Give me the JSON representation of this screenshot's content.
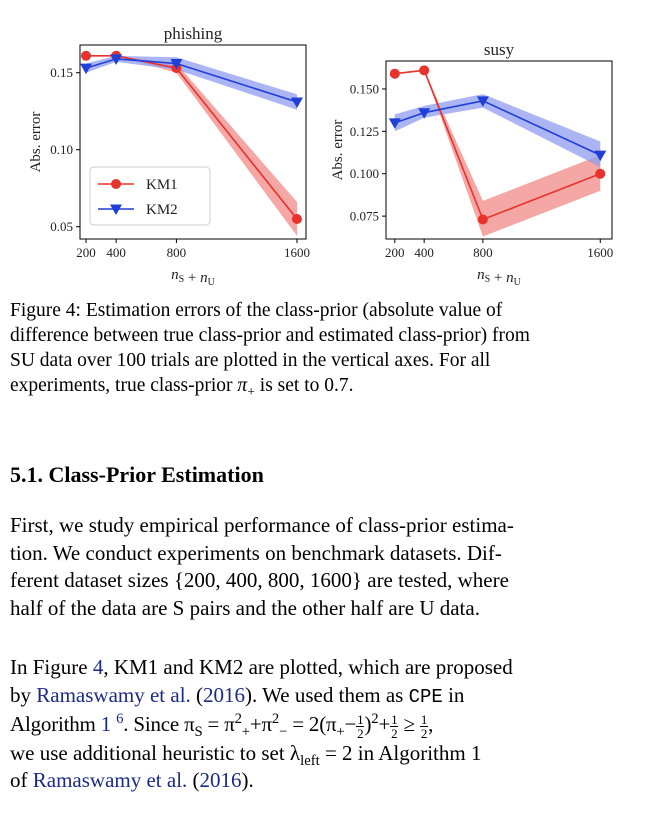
{
  "chart_data": [
    {
      "type": "line",
      "title": "phishing",
      "xlabel": "nS + nU",
      "ylabel": "Abs. error",
      "x": [
        200,
        400,
        800,
        1600
      ],
      "xticks": [
        "200",
        "400",
        "800",
        "1600"
      ],
      "xlim": [
        160,
        1660
      ],
      "ylim": [
        0.042,
        0.168
      ],
      "yticks": [
        "0.05",
        "0.10",
        "0.15"
      ],
      "ytick_values": [
        0.05,
        0.1,
        0.15
      ],
      "legend": "lower-left",
      "series": [
        {
          "name": "KM1",
          "color": "#e8322c",
          "fill": "#f08a86",
          "marker": "circle",
          "values": [
            0.161,
            0.161,
            0.153,
            0.055
          ],
          "lower": [
            0.161,
            0.161,
            0.15,
            0.044
          ],
          "upper": [
            0.161,
            0.161,
            0.156,
            0.066
          ]
        },
        {
          "name": "KM2",
          "color": "#1f3fd6",
          "fill": "#8f9cf0",
          "marker": "triangle-down",
          "values": [
            0.153,
            0.159,
            0.156,
            0.131
          ],
          "lower": [
            0.15,
            0.157,
            0.152,
            0.126
          ],
          "upper": [
            0.156,
            0.161,
            0.16,
            0.136
          ]
        }
      ]
    },
    {
      "type": "line",
      "title": "susy",
      "xlabel": "nS + nU",
      "ylabel": "Abs. error",
      "x": [
        200,
        400,
        800,
        1600
      ],
      "xticks": [
        "200",
        "400",
        "800",
        "1600"
      ],
      "xlim": [
        140,
        1680
      ],
      "ylim": [
        0.0615,
        0.1665
      ],
      "yticks": [
        "0.075",
        "0.100",
        "0.125",
        "0.150"
      ],
      "ytick_values": [
        0.075,
        0.1,
        0.125,
        0.15
      ],
      "legend": "none",
      "series": [
        {
          "name": "KM1",
          "color": "#e8322c",
          "fill": "#f08a86",
          "marker": "circle",
          "values": [
            0.159,
            0.161,
            0.073,
            0.1
          ],
          "lower": [
            0.159,
            0.161,
            0.063,
            0.09
          ],
          "upper": [
            0.159,
            0.161,
            0.084,
            0.111
          ]
        },
        {
          "name": "KM2",
          "color": "#1f3fd6",
          "fill": "#8f9cf0",
          "marker": "triangle-down",
          "values": [
            0.13,
            0.136,
            0.143,
            0.111
          ],
          "lower": [
            0.125,
            0.133,
            0.139,
            0.104
          ],
          "upper": [
            0.135,
            0.14,
            0.147,
            0.119
          ]
        }
      ]
    }
  ],
  "caption": {
    "l1": "Figure 4: Estimation errors of the class-prior (absolute value of",
    "l2": "difference between true class-prior and estimated class-prior) from",
    "l3": "SU data over 100 trials are plotted in the vertical axes.  For all",
    "l4a": "experiments, true class-prior ",
    "l4m": "π",
    "l4s": "+",
    "l4b": " is set to 0.7."
  },
  "section": {
    "title": "5.1. Class-Prior Estimation"
  },
  "para1": {
    "l1": "First, we study empirical performance of class-prior estima-",
    "l2": "tion. We conduct experiments on benchmark datasets. Dif-",
    "l3": "ferent dataset sizes {200, 400, 800, 1600} are tested, where",
    "l4": "half of the data are S pairs and the other half are U data."
  },
  "para2": {
    "l1a": "In Figure ",
    "fig_ref": "4",
    "l1b": ", KM1 and KM2 are plotted, which are proposed",
    "l2a": "by ",
    "cite1": "Ramaswamy et al.",
    "l2b": " (",
    "cite1_year": "2016",
    "l2c": ").  We used them as ",
    "cpe": "CPE",
    "l2d": " in",
    "l3a": "Algorithm ",
    "alg_ref": "1",
    "footnote": "6",
    "l3b": ". Since π",
    "l3c": " = π",
    "l3d": "+π",
    "l3e": " = 2(π",
    "l3f": "−",
    "l3g": ")",
    "l3h": "+",
    "l3i": " ≥ ",
    "l3j": ",",
    "half_num": "1",
    "half_den": "2",
    "sub_S": "S",
    "sub_plus": "+",
    "sub_minus": "−",
    "sup_2": "2",
    "l4a": "we use additional heuristic to set λ",
    "l4sub": "left",
    "l4b": " = 2 in Algorithm 1",
    "l5a": "of ",
    "cite2": "Ramaswamy et al.",
    "l5b": " (",
    "cite2_year": "2016",
    "l5c": ")."
  }
}
